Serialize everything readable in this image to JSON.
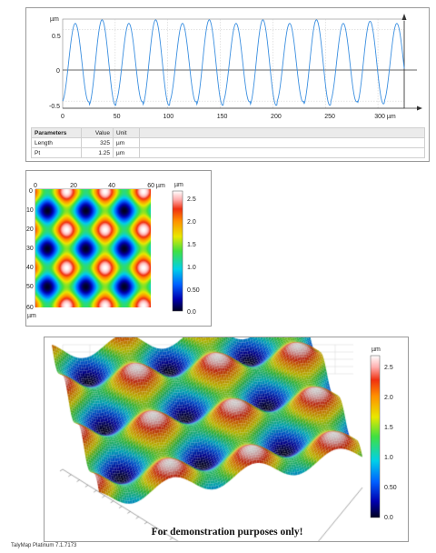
{
  "profile": {
    "y_unit": "µm",
    "x_unit": "µm",
    "y_ticks": [
      "0.5",
      "0",
      "-0.5"
    ],
    "x_ticks": [
      "0",
      "50",
      "100",
      "150",
      "200",
      "250",
      "300 µm"
    ],
    "params_table": {
      "headers": [
        "Parameters",
        "Value",
        "Unit"
      ],
      "rows": [
        {
          "param": "Length",
          "value": "325",
          "unit": "µm"
        },
        {
          "param": "Pt",
          "value": "1.25",
          "unit": "µm"
        }
      ]
    }
  },
  "map2d": {
    "x_ticks": [
      "0",
      "20",
      "40",
      "60 µm"
    ],
    "y_ticks": [
      "0",
      "10",
      "20",
      "30",
      "40",
      "50",
      "60"
    ],
    "y_unit": "µm",
    "colorbar_unit": "µm",
    "colorbar_ticks": [
      "2.5",
      "2.0",
      "1.5",
      "1.0",
      "0.50",
      "0.0"
    ]
  },
  "view3d": {
    "colorbar_unit": "µm",
    "colorbar_ticks": [
      "2.5",
      "2.0",
      "1.5",
      "1.0",
      "0.50",
      "0.0"
    ],
    "watermark": "For demonstration purposes only!"
  },
  "footer": "TalyMap Platinum 7.1.7173",
  "chart_data": {
    "type": "line",
    "title": "",
    "xlabel": "µm",
    "ylabel": "µm",
    "xlim": [
      0,
      325
    ],
    "ylim": [
      -0.6,
      0.65
    ],
    "grid": true,
    "period": 25.5,
    "amplitudes": [
      0.55,
      0.6,
      0.55,
      0.6,
      0.55,
      0.6,
      0.55,
      0.6,
      0.55,
      0.6,
      0.55,
      0.58,
      0.55
    ]
  }
}
